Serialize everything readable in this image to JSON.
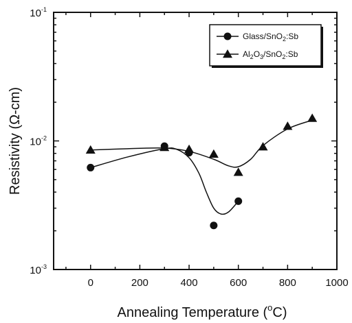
{
  "chart_data": {
    "type": "scatter",
    "xlabel_main": "Annealing Temperature",
    "xlabel_unit_open": "(",
    "xlabel_unit_sup": "o",
    "xlabel_unit_rest": "C)",
    "ylabel": "Resistivity  (Ω-cm)",
    "xlim": [
      -150,
      1000
    ],
    "ylim": [
      0.001,
      0.1
    ],
    "yscale": "log",
    "x_ticks": [
      0,
      200,
      400,
      600,
      800,
      1000
    ],
    "x_tick_labels": [
      "0",
      "200",
      "400",
      "600",
      "800",
      "1000"
    ],
    "y_ticks": [
      0.001,
      0.01,
      0.1
    ],
    "y_tick_labels": [
      {
        "base": "10",
        "exp": "-3"
      },
      {
        "base": "10",
        "exp": "-2"
      },
      {
        "base": "10",
        "exp": "-1"
      }
    ],
    "legend_position": "top-right",
    "series": [
      {
        "name_parts": [
          "Glass/SnO",
          "2",
          ":Sb"
        ],
        "marker": "circle",
        "x": [
          0,
          300,
          400,
          500,
          600
        ],
        "y": [
          0.0062,
          0.0091,
          0.0081,
          0.0022,
          0.0034
        ],
        "curve_x": [
          0,
          150,
          300,
          350,
          400,
          440,
          470,
          500,
          530,
          560,
          600
        ],
        "curve_y": [
          0.0062,
          0.0075,
          0.0087,
          0.0086,
          0.0074,
          0.0056,
          0.004,
          0.003,
          0.0027,
          0.0028,
          0.0034
        ]
      },
      {
        "name_parts": [
          "Al",
          "2",
          "O",
          "3",
          "/SnO",
          "2",
          ":Sb"
        ],
        "marker": "triangle",
        "x": [
          0,
          300,
          400,
          500,
          600,
          700,
          800,
          900
        ],
        "y": [
          0.0085,
          0.0089,
          0.0086,
          0.0079,
          0.0057,
          0.009,
          0.013,
          0.015
        ],
        "curve_x": [
          0,
          150,
          300,
          400,
          500,
          560,
          600,
          650,
          700,
          800,
          900
        ],
        "curve_y": [
          0.0085,
          0.0087,
          0.0088,
          0.0083,
          0.0072,
          0.0064,
          0.0063,
          0.0072,
          0.0092,
          0.0124,
          0.0145
        ]
      }
    ]
  }
}
